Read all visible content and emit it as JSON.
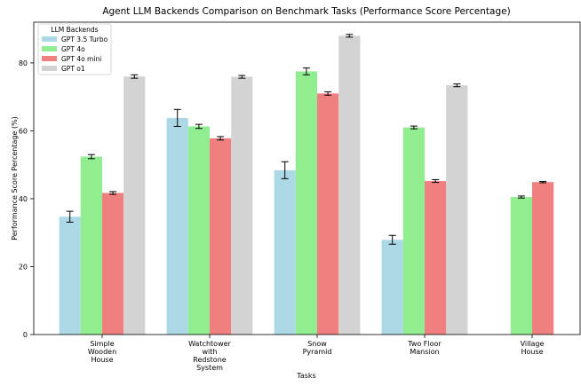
{
  "chart_data": {
    "type": "bar",
    "title": "Agent LLM Backends Comparison on Benchmark Tasks (Performance Score Percentage)",
    "xlabel": "Tasks",
    "ylabel": "Performance Score Percentage (%)",
    "ylim": [
      0,
      92
    ],
    "yticks": [
      0,
      20,
      40,
      60,
      80
    ],
    "grid": false,
    "legend": {
      "title": "LLM Backends",
      "placement": "top-left"
    },
    "categories": [
      [
        "Simple",
        "Wooden",
        "House"
      ],
      [
        "Watchtower",
        "with",
        "Redstone",
        "System"
      ],
      [
        "Snow",
        "Pyramid"
      ],
      [
        "Two Floor",
        "Mansion"
      ],
      [
        "Village",
        "House"
      ]
    ],
    "series": [
      {
        "name": "GPT 3.5 Turbo",
        "color": "#add8e6",
        "values": [
          34.7,
          63.8,
          48.4,
          27.9,
          null
        ],
        "errors": [
          1.6,
          2.5,
          2.5,
          1.3,
          null
        ]
      },
      {
        "name": "GPT 4o",
        "color": "#90ee90",
        "values": [
          52.4,
          61.3,
          77.5,
          61.0,
          40.5
        ],
        "errors": [
          0.6,
          0.6,
          1.0,
          0.4,
          0.3
        ]
      },
      {
        "name": "GPT 4o mini",
        "color": "#f08080",
        "values": [
          41.7,
          57.8,
          71.0,
          45.2,
          44.9
        ],
        "errors": [
          0.4,
          0.5,
          0.5,
          0.4,
          0.2
        ]
      },
      {
        "name": "GPT o1",
        "color": "#d3d3d3",
        "values": [
          76.0,
          75.9,
          88.0,
          73.4,
          null
        ],
        "errors": [
          0.5,
          0.4,
          0.4,
          0.4,
          null
        ]
      }
    ]
  }
}
